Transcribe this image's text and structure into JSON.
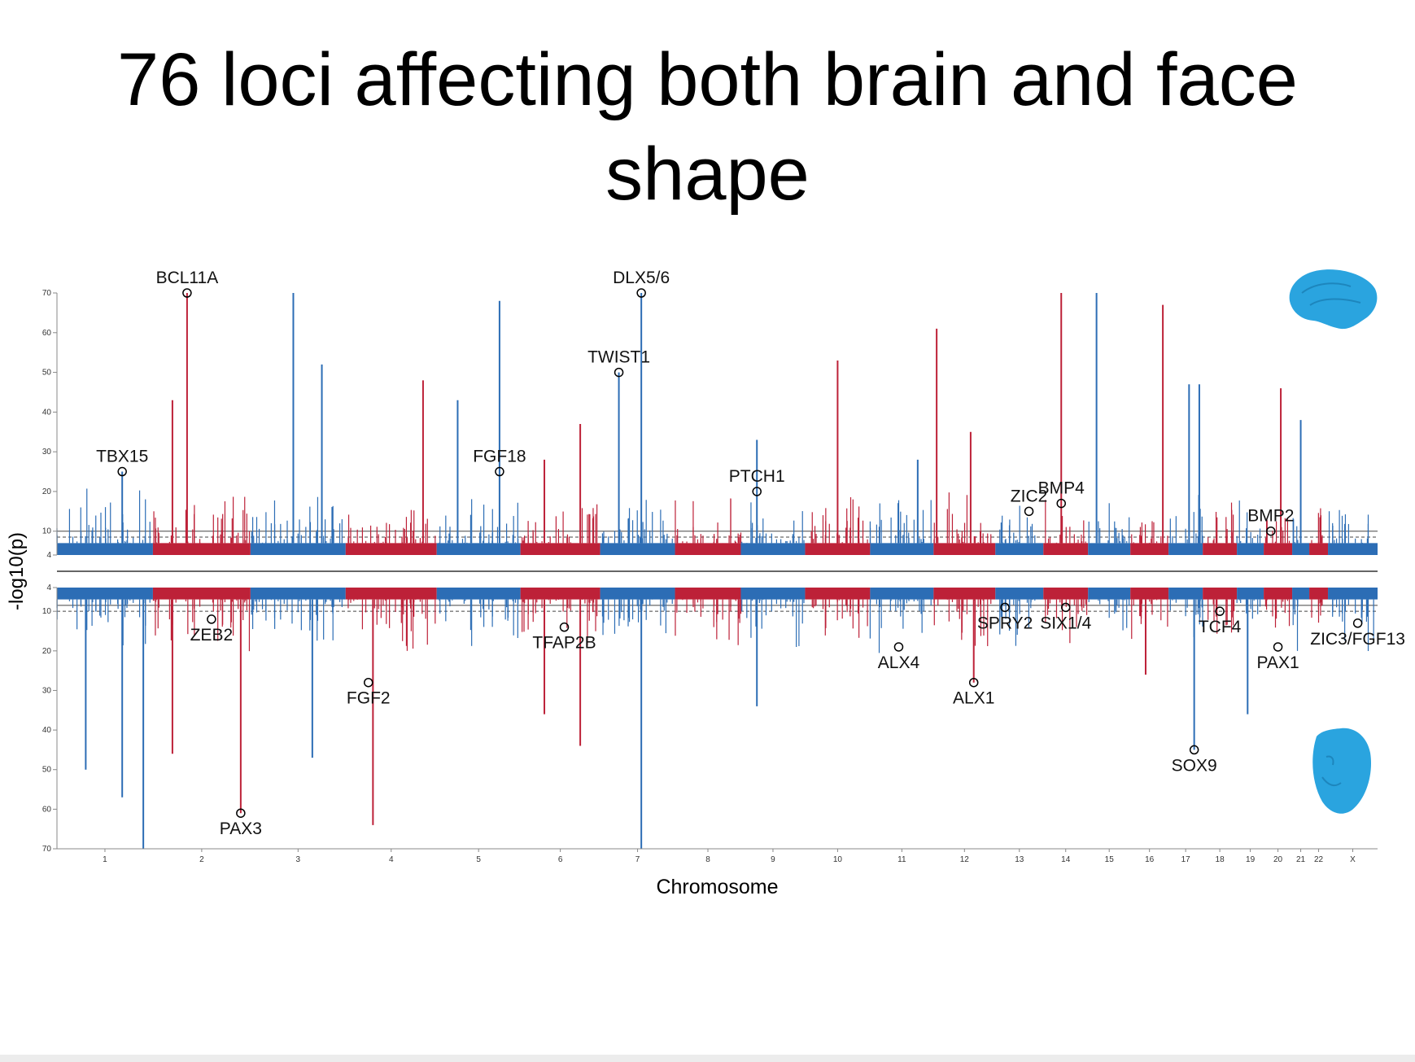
{
  "slide": {
    "title_line1": "76 loci affecting both brain and face",
    "title_line2": "shape"
  },
  "chart_data": {
    "type": "manhattan",
    "xlabel": "Chromosome",
    "ylabel": "-log10(p)",
    "top_panel": {
      "ylim": [
        4,
        70
      ],
      "yticks": [
        10,
        20,
        30,
        40,
        50,
        60,
        70
      ]
    },
    "bottom_panel": {
      "ylim": [
        4,
        70
      ],
      "yticks": [
        10,
        20,
        30,
        40,
        50,
        60,
        70
      ]
    },
    "chromosomes": [
      "1",
      "2",
      "3",
      "4",
      "5",
      "6",
      "7",
      "8",
      "9",
      "10",
      "11",
      "12",
      "13",
      "14",
      "15",
      "16",
      "17",
      "18",
      "19",
      "20",
      "21",
      "22",
      "X"
    ],
    "colors": {
      "odd": "#2c6db5",
      "even": "#bd2138",
      "brain_model": "#2aa4df",
      "face_model": "#2aa4df"
    },
    "top_labels": [
      {
        "text": "BCL11A",
        "chr": "2",
        "pos": 0.35,
        "y": 70
      },
      {
        "text": "TBX15",
        "chr": "1",
        "pos": 0.68,
        "y": 25
      },
      {
        "text": "DLX5/6",
        "chr": "7",
        "pos": 0.55,
        "y": 70
      },
      {
        "text": "TWIST1",
        "chr": "7",
        "pos": 0.25,
        "y": 50
      },
      {
        "text": "FGF18",
        "chr": "5",
        "pos": 0.75,
        "y": 25
      },
      {
        "text": "PTCH1",
        "chr": "9",
        "pos": 0.25,
        "y": 20
      },
      {
        "text": "BMP4",
        "chr": "14",
        "pos": 0.4,
        "y": 17
      },
      {
        "text": "ZIC2",
        "chr": "13",
        "pos": 0.7,
        "y": 15
      },
      {
        "text": "BMP2",
        "chr": "20",
        "pos": 0.25,
        "y": 10
      }
    ],
    "bottom_labels": [
      {
        "text": "ZEB2",
        "chr": "2",
        "pos": 0.6,
        "y": 12
      },
      {
        "text": "PAX3",
        "chr": "2",
        "pos": 0.9,
        "y": 61
      },
      {
        "text": "FGF2",
        "chr": "4",
        "pos": 0.25,
        "y": 28
      },
      {
        "text": "TFAP2B",
        "chr": "6",
        "pos": 0.55,
        "y": 14
      },
      {
        "text": "ALX4",
        "chr": "11",
        "pos": 0.45,
        "y": 19
      },
      {
        "text": "ALX1",
        "chr": "12",
        "pos": 0.65,
        "y": 28
      },
      {
        "text": "SPRY2",
        "chr": "13",
        "pos": 0.2,
        "y": 9
      },
      {
        "text": "SIX1/4",
        "chr": "14",
        "pos": 0.5,
        "y": 9
      },
      {
        "text": "SOX9",
        "chr": "17",
        "pos": 0.75,
        "y": 45
      },
      {
        "text": "TCF4",
        "chr": "18",
        "pos": 0.5,
        "y": 10
      },
      {
        "text": "ZIC3/FGF13",
        "chr": "X",
        "pos": 0.6,
        "y": 13
      },
      {
        "text": "PAX1",
        "chr": "20",
        "pos": 0.5,
        "y": 19
      }
    ],
    "top_peaks": [
      {
        "chr": "1",
        "pos": 0.68,
        "y": 25
      },
      {
        "chr": "2",
        "pos": 0.35,
        "y": 70
      },
      {
        "chr": "2",
        "pos": 0.2,
        "y": 43
      },
      {
        "chr": "3",
        "pos": 0.45,
        "y": 70
      },
      {
        "chr": "3",
        "pos": 0.75,
        "y": 52
      },
      {
        "chr": "4",
        "pos": 0.85,
        "y": 48
      },
      {
        "chr": "5",
        "pos": 0.25,
        "y": 43
      },
      {
        "chr": "5",
        "pos": 0.75,
        "y": 68
      },
      {
        "chr": "6",
        "pos": 0.3,
        "y": 28
      },
      {
        "chr": "6",
        "pos": 0.75,
        "y": 37
      },
      {
        "chr": "7",
        "pos": 0.25,
        "y": 50
      },
      {
        "chr": "7",
        "pos": 0.55,
        "y": 70
      },
      {
        "chr": "9",
        "pos": 0.25,
        "y": 33
      },
      {
        "chr": "10",
        "pos": 0.5,
        "y": 53
      },
      {
        "chr": "11",
        "pos": 0.75,
        "y": 28
      },
      {
        "chr": "12",
        "pos": 0.05,
        "y": 61
      },
      {
        "chr": "12",
        "pos": 0.6,
        "y": 35
      },
      {
        "chr": "14",
        "pos": 0.4,
        "y": 70
      },
      {
        "chr": "15",
        "pos": 0.2,
        "y": 70
      },
      {
        "chr": "16",
        "pos": 0.85,
        "y": 67
      },
      {
        "chr": "17",
        "pos": 0.6,
        "y": 47
      },
      {
        "chr": "17",
        "pos": 0.9,
        "y": 47
      },
      {
        "chr": "20",
        "pos": 0.6,
        "y": 46
      },
      {
        "chr": "21",
        "pos": 0.5,
        "y": 38
      }
    ],
    "bottom_peaks": [
      {
        "chr": "1",
        "pos": 0.68,
        "y": 57
      },
      {
        "chr": "1",
        "pos": 0.9,
        "y": 70
      },
      {
        "chr": "1",
        "pos": 0.3,
        "y": 50
      },
      {
        "chr": "2",
        "pos": 0.2,
        "y": 46
      },
      {
        "chr": "2",
        "pos": 0.9,
        "y": 61
      },
      {
        "chr": "3",
        "pos": 0.65,
        "y": 47
      },
      {
        "chr": "4",
        "pos": 0.3,
        "y": 64
      },
      {
        "chr": "6",
        "pos": 0.3,
        "y": 36
      },
      {
        "chr": "6",
        "pos": 0.75,
        "y": 44
      },
      {
        "chr": "7",
        "pos": 0.55,
        "y": 70
      },
      {
        "chr": "9",
        "pos": 0.25,
        "y": 34
      },
      {
        "chr": "12",
        "pos": 0.65,
        "y": 28
      },
      {
        "chr": "17",
        "pos": 0.75,
        "y": 45
      },
      {
        "chr": "19",
        "pos": 0.4,
        "y": 36
      },
      {
        "chr": "16",
        "pos": 0.4,
        "y": 26
      }
    ]
  }
}
